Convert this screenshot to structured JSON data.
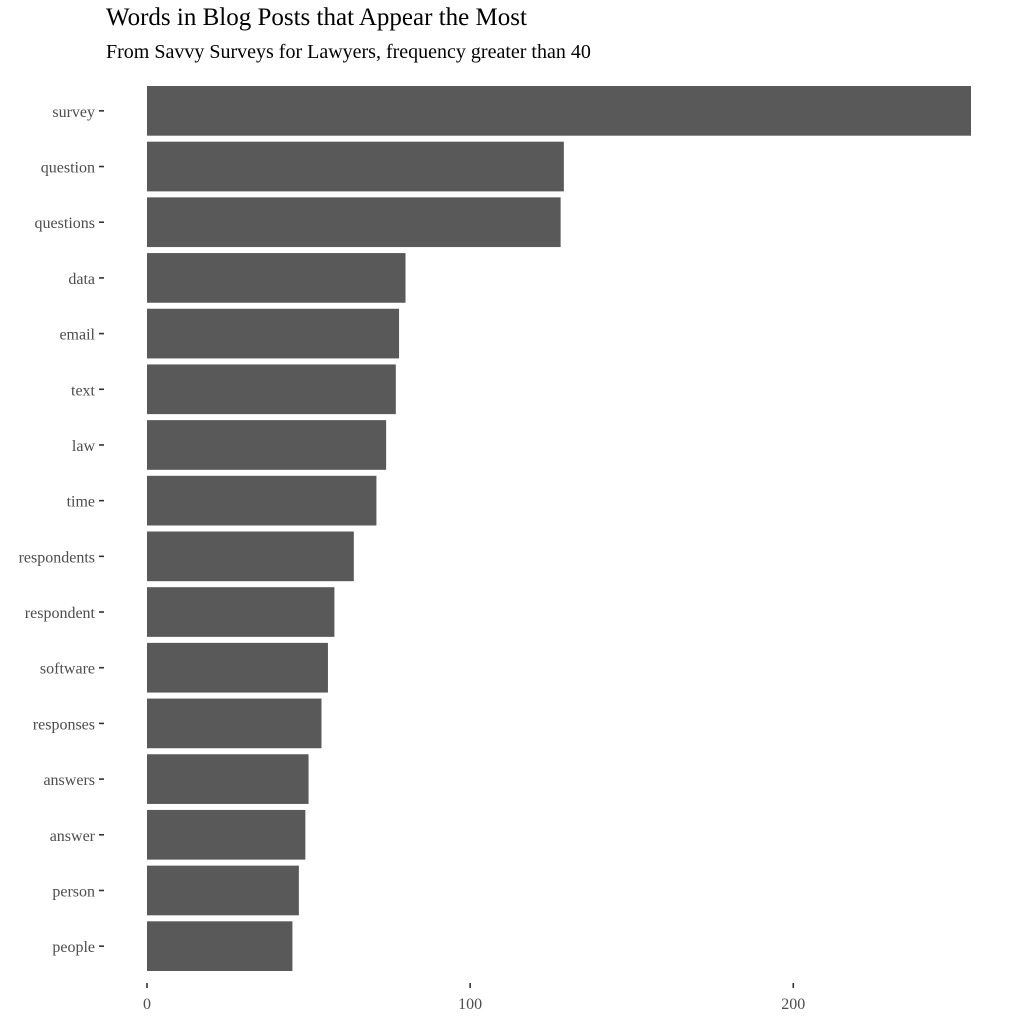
{
  "chart_data": {
    "type": "bar",
    "orientation": "horizontal",
    "title": "Words in Blog Posts that Appear the Most",
    "subtitle": "From Savvy Surveys for Lawyers, frequency greater than 40",
    "xlabel": "",
    "ylabel": "",
    "categories": [
      "survey",
      "question",
      "questions",
      "data",
      "email",
      "text",
      "law",
      "time",
      "respondents",
      "respondent",
      "software",
      "responses",
      "answers",
      "answer",
      "person",
      "people"
    ],
    "values": [
      255,
      129,
      128,
      80,
      78,
      77,
      74,
      71,
      64,
      58,
      56,
      54,
      50,
      49,
      47,
      45
    ],
    "xlim": [
      0,
      255
    ],
    "x_ticks": [
      0,
      100,
      200
    ],
    "grid": false,
    "bar_color": "#595959",
    "text_color": "#4d4d4d"
  }
}
